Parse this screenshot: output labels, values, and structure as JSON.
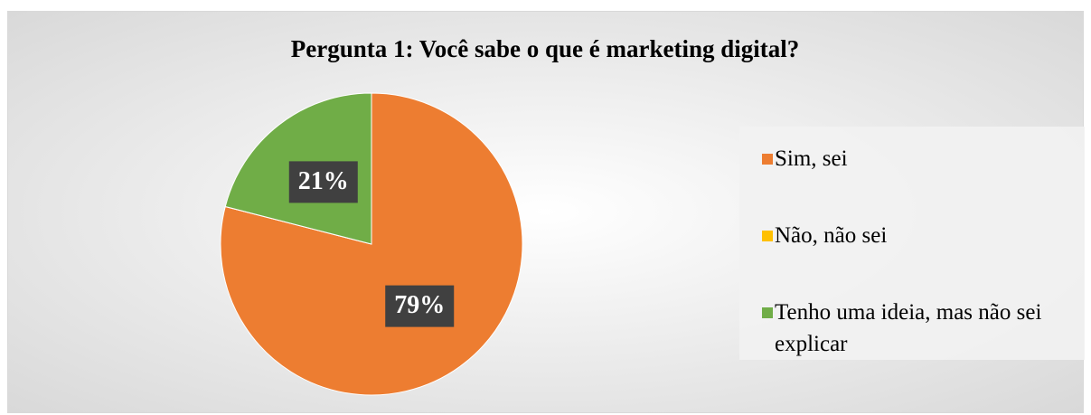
{
  "chart_data": {
    "type": "pie",
    "title": "Pergunta 1: Você sabe o que é marketing digital?",
    "categories": [
      "Sim, sei",
      "Não, não sei",
      "Tenho uma ideia, mas não sei explicar"
    ],
    "values": [
      79,
      0,
      21
    ],
    "value_labels": [
      "79%",
      null,
      "21%"
    ],
    "colors": [
      "#ed7d31",
      "#ffc000",
      "#70ad47"
    ],
    "legend": "right"
  }
}
